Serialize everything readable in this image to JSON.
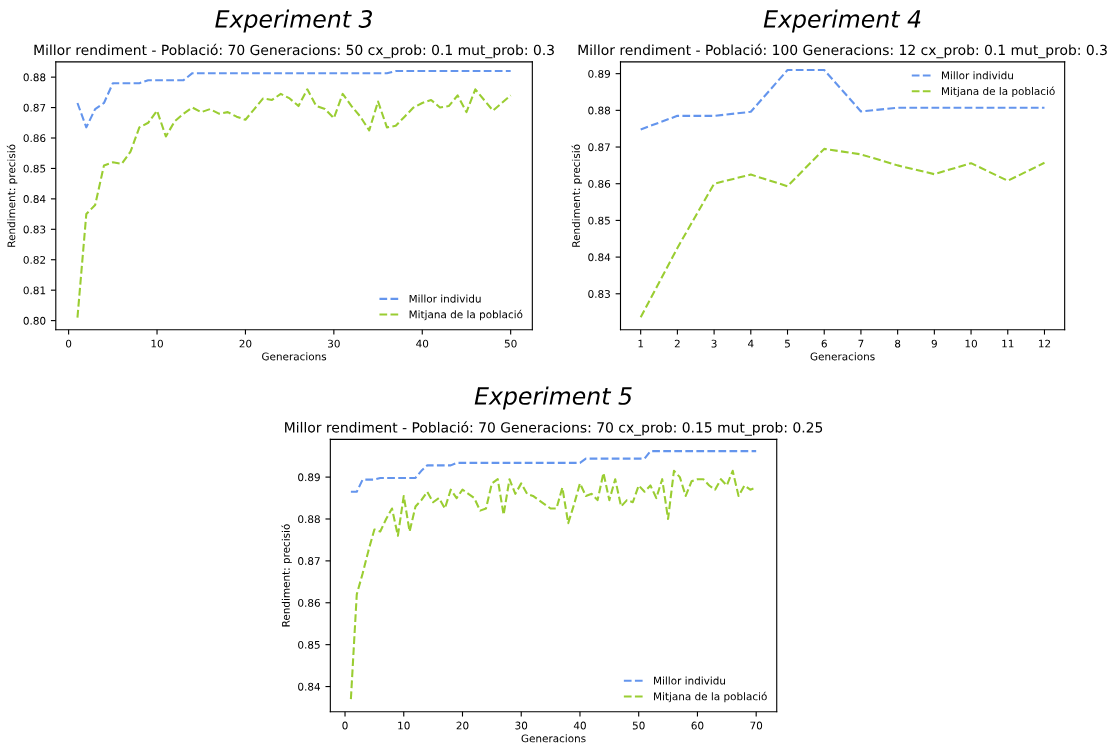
{
  "chart_data": [
    {
      "type": "line",
      "title": "Experiment 3",
      "subtitle": "Millor rendiment - Població: 70 Generacions: 50 cx_prob: 0.1 mut_prob: 0.3",
      "xlabel": "Generacions",
      "ylabel": "Rendiment: precisió",
      "legend": "bottom right",
      "line_style": "dashed",
      "grid": false,
      "x": [
        1,
        2,
        3,
        4,
        5,
        6,
        7,
        8,
        9,
        10,
        11,
        12,
        13,
        14,
        15,
        16,
        17,
        18,
        19,
        20,
        21,
        22,
        23,
        24,
        25,
        26,
        27,
        28,
        29,
        30,
        31,
        32,
        33,
        34,
        35,
        36,
        37,
        38,
        39,
        40,
        41,
        42,
        43,
        44,
        45,
        46,
        47,
        48,
        49,
        50
      ],
      "xlim": [
        -1.45,
        52.45
      ],
      "xticks": [
        0,
        10,
        20,
        30,
        40,
        50
      ],
      "ylim": [
        0.797,
        0.885
      ],
      "yticks": [
        {
          "value": 0.8,
          "label": "0.80"
        },
        0.81,
        0.82,
        0.83,
        0.84,
        0.85,
        0.86,
        0.87,
        0.88
      ],
      "series": [
        {
          "name": "Millor individu",
          "color": "#6495ed",
          "values": [
            0.8715,
            0.8635,
            0.8695,
            0.8715,
            0.878,
            0.878,
            0.878,
            0.878,
            0.879,
            0.879,
            0.879,
            0.879,
            0.879,
            0.8813,
            0.8813,
            0.8813,
            0.8813,
            0.8813,
            0.8813,
            0.8813,
            0.8813,
            0.8813,
            0.8813,
            0.8813,
            0.8813,
            0.8813,
            0.8813,
            0.8813,
            0.8813,
            0.8813,
            0.8813,
            0.8813,
            0.8813,
            0.8813,
            0.8813,
            0.8813,
            0.882,
            0.882,
            0.882,
            0.882,
            0.882,
            0.882,
            0.882,
            0.882,
            0.882,
            0.882,
            0.882,
            0.882,
            0.882,
            0.882
          ]
        },
        {
          "name": "Mitjana de la població",
          "color": "#9acd32",
          "values": [
            0.801,
            0.835,
            0.838,
            0.851,
            0.852,
            0.8515,
            0.8555,
            0.8635,
            0.865,
            0.869,
            0.8605,
            0.8655,
            0.868,
            0.87,
            0.8685,
            0.8695,
            0.868,
            0.8685,
            0.867,
            0.866,
            0.8695,
            0.873,
            0.8725,
            0.8745,
            0.873,
            0.8705,
            0.876,
            0.8705,
            0.8695,
            0.8665,
            0.8745,
            0.8705,
            0.867,
            0.8625,
            0.872,
            0.8635,
            0.864,
            0.867,
            0.87,
            0.8715,
            0.8725,
            0.87,
            0.8705,
            0.874,
            0.8685,
            0.876,
            0.8725,
            0.869,
            0.8715,
            0.874
          ]
        }
      ]
    },
    {
      "type": "line",
      "title": "Experiment 4",
      "subtitle": "Millor rendiment - Població: 100 Generacions: 12 cx_prob: 0.1 mut_prob: 0.3",
      "xlabel": "Generacions",
      "ylabel": "Rendiment: precisió",
      "legend": "top right",
      "line_style": "dashed",
      "grid": false,
      "x": [
        1,
        2,
        3,
        4,
        5,
        6,
        7,
        8,
        9,
        10,
        11,
        12
      ],
      "xlim": [
        0.45,
        12.55
      ],
      "xticks": [
        1,
        2,
        3,
        4,
        5,
        6,
        7,
        8,
        9,
        10,
        11,
        12
      ],
      "ylim": [
        0.8202,
        0.8932
      ],
      "yticks": [
        0.83,
        0.84,
        0.85,
        0.86,
        0.87,
        0.88,
        0.89
      ],
      "series": [
        {
          "name": "Millor individu",
          "color": "#6495ed",
          "values": [
            0.8748,
            0.8785,
            0.8785,
            0.8796,
            0.891,
            0.891,
            0.8797,
            0.8807,
            0.8807,
            0.8807,
            0.8807,
            0.8807
          ]
        },
        {
          "name": "Mitjana de la població",
          "color": "#9acd32",
          "values": [
            0.8236,
            0.8425,
            0.86,
            0.8625,
            0.8593,
            0.8695,
            0.868,
            0.865,
            0.8626,
            0.8656,
            0.8608,
            0.8657
          ]
        }
      ]
    },
    {
      "type": "line",
      "title": "Experiment 5",
      "subtitle": "Millor rendiment - Població: 70 Generacions: 70 cx_prob: 0.15 mut_prob: 0.25",
      "xlabel": "Generacions",
      "ylabel": "Rendiment: precisió",
      "legend": "bottom right",
      "line_style": "dashed",
      "grid": false,
      "x": [
        1,
        2,
        3,
        4,
        5,
        6,
        7,
        8,
        9,
        10,
        11,
        12,
        13,
        14,
        15,
        16,
        17,
        18,
        19,
        20,
        21,
        22,
        23,
        24,
        25,
        26,
        27,
        28,
        29,
        30,
        31,
        32,
        33,
        34,
        35,
        36,
        37,
        38,
        39,
        40,
        41,
        42,
        43,
        44,
        45,
        46,
        47,
        48,
        49,
        50,
        51,
        52,
        53,
        54,
        55,
        56,
        57,
        58,
        59,
        60,
        61,
        62,
        63,
        64,
        65,
        66,
        67,
        68,
        69,
        70
      ],
      "xlim": [
        -2.5,
        73.5
      ],
      "xticks": [
        0,
        10,
        20,
        30,
        40,
        50,
        60,
        70
      ],
      "ylim": [
        0.834,
        0.899
      ],
      "yticks": [
        0.84,
        0.85,
        0.86,
        0.87,
        0.88,
        0.89
      ],
      "series": [
        {
          "name": "Millor individu",
          "color": "#6495ed",
          "values": [
            0.8865,
            0.8865,
            0.8894,
            0.8894,
            0.8894,
            0.8898,
            0.8898,
            0.8898,
            0.8898,
            0.8898,
            0.8898,
            0.8898,
            0.8915,
            0.8928,
            0.8928,
            0.8928,
            0.8928,
            0.8928,
            0.8934,
            0.8934,
            0.8934,
            0.8934,
            0.8934,
            0.8934,
            0.8934,
            0.8934,
            0.8934,
            0.8934,
            0.8934,
            0.8934,
            0.8934,
            0.8934,
            0.8934,
            0.8934,
            0.8934,
            0.8934,
            0.8934,
            0.8934,
            0.8934,
            0.8934,
            0.8944,
            0.8944,
            0.8944,
            0.8944,
            0.8944,
            0.8944,
            0.8944,
            0.8944,
            0.8944,
            0.8944,
            0.8944,
            0.8962,
            0.8962,
            0.8962,
            0.8962,
            0.8962,
            0.8962,
            0.8962,
            0.8962,
            0.8962,
            0.8962,
            0.8962,
            0.8962,
            0.8962,
            0.8962,
            0.8962,
            0.8962,
            0.8962,
            0.8962,
            0.8962
          ]
        },
        {
          "name": "Mitjana de la població",
          "color": "#9acd32",
          "values": [
            0.837,
            0.862,
            0.867,
            0.8725,
            0.8775,
            0.877,
            0.88,
            0.8825,
            0.876,
            0.8855,
            0.877,
            0.883,
            0.8845,
            0.8865,
            0.884,
            0.885,
            0.8825,
            0.887,
            0.885,
            0.887,
            0.886,
            0.885,
            0.882,
            0.8825,
            0.8885,
            0.8895,
            0.881,
            0.8895,
            0.886,
            0.8885,
            0.886,
            0.8855,
            0.8845,
            0.8835,
            0.8825,
            0.8825,
            0.8875,
            0.879,
            0.8835,
            0.8885,
            0.8855,
            0.886,
            0.8845,
            0.891,
            0.8845,
            0.8895,
            0.883,
            0.8845,
            0.884,
            0.888,
            0.8865,
            0.888,
            0.885,
            0.8895,
            0.88,
            0.8915,
            0.89,
            0.8855,
            0.889,
            0.8895,
            0.8895,
            0.888,
            0.887,
            0.8895,
            0.888,
            0.8915,
            0.8855,
            0.888,
            0.887,
            0.8875
          ]
        }
      ]
    }
  ]
}
